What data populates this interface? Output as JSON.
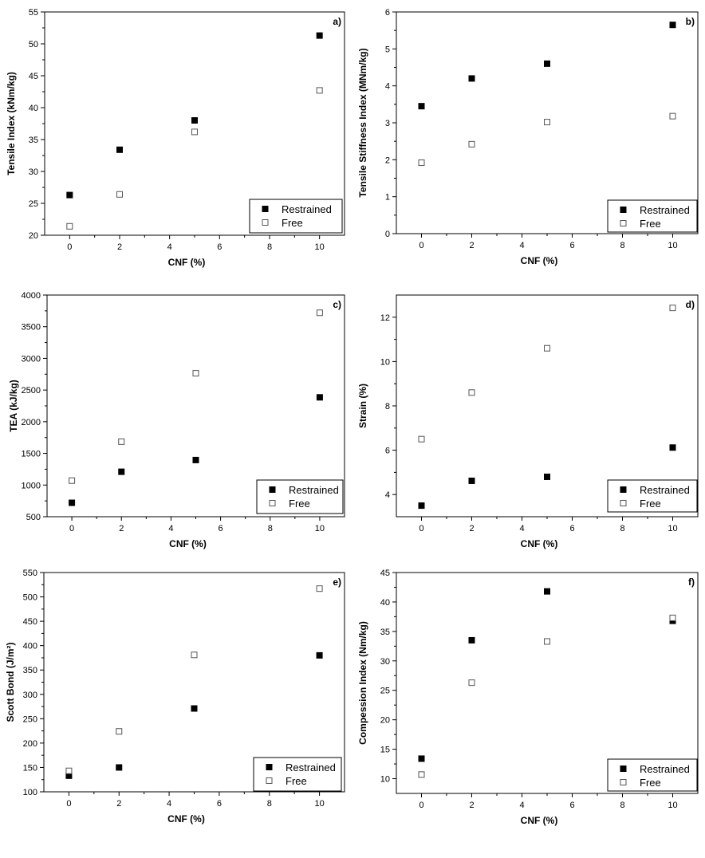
{
  "chart_data": [
    {
      "panel": "a)",
      "type": "scatter",
      "xlabel": "CNF (%)",
      "ylabel": "Tensile Index (kNm/kg)",
      "xlim": [
        -1,
        11
      ],
      "ylim": [
        20,
        55
      ],
      "xticks": [
        0,
        2,
        4,
        6,
        8,
        10
      ],
      "yticks": [
        20,
        25,
        30,
        35,
        40,
        45,
        50,
        55
      ],
      "legend_position": "bottom-right",
      "series": [
        {
          "name": "Restrained",
          "marker": "filled-square",
          "x": [
            0,
            2,
            5,
            10
          ],
          "y": [
            26.3,
            33.4,
            38.0,
            51.3
          ]
        },
        {
          "name": "Free",
          "marker": "open-square",
          "x": [
            0,
            2,
            5,
            10
          ],
          "y": [
            21.4,
            26.4,
            36.2,
            42.7
          ]
        }
      ]
    },
    {
      "panel": "b)",
      "type": "scatter",
      "xlabel": "CNF (%)",
      "ylabel": "Tensile Stiffness Index (MNm/kg)",
      "xlim": [
        -1,
        11
      ],
      "ylim": [
        0,
        6
      ],
      "xticks": [
        0,
        2,
        4,
        6,
        8,
        10
      ],
      "yticks": [
        0,
        1,
        2,
        3,
        4,
        5,
        6
      ],
      "legend_position": "bottom-right",
      "series": [
        {
          "name": "Restrained",
          "marker": "filled-square",
          "x": [
            0,
            2,
            5,
            10
          ],
          "y": [
            3.45,
            4.2,
            4.6,
            5.65
          ]
        },
        {
          "name": "Free",
          "marker": "open-square",
          "x": [
            0,
            2,
            5,
            10
          ],
          "y": [
            1.92,
            2.42,
            3.02,
            3.18
          ]
        }
      ]
    },
    {
      "panel": "c)",
      "type": "scatter",
      "xlabel": "CNF (%)",
      "ylabel": "TEA (kJ/kg)",
      "xlim": [
        -1,
        11
      ],
      "ylim": [
        500,
        4000
      ],
      "xticks": [
        0,
        2,
        4,
        6,
        8,
        10
      ],
      "yticks": [
        500,
        1000,
        1500,
        2000,
        2500,
        3000,
        3500,
        4000
      ],
      "legend_position": "bottom-right",
      "series": [
        {
          "name": "Restrained",
          "marker": "filled-square",
          "x": [
            0,
            2,
            5,
            10
          ],
          "y": [
            720,
            1210,
            1395,
            2385
          ]
        },
        {
          "name": "Free",
          "marker": "open-square",
          "x": [
            0,
            2,
            5,
            10
          ],
          "y": [
            1070,
            1685,
            2765,
            3720
          ]
        }
      ]
    },
    {
      "panel": "d)",
      "type": "scatter",
      "xlabel": "CNF (%)",
      "ylabel": "Strain (%)",
      "xlim": [
        -1,
        11
      ],
      "ylim": [
        3,
        13
      ],
      "xticks": [
        0,
        2,
        4,
        6,
        8,
        10
      ],
      "yticks": [
        4,
        6,
        8,
        10,
        12
      ],
      "legend_position": "bottom-right",
      "series": [
        {
          "name": "Restrained",
          "marker": "filled-square",
          "x": [
            0,
            2,
            5,
            10
          ],
          "y": [
            3.5,
            4.62,
            4.8,
            6.12
          ]
        },
        {
          "name": "Free",
          "marker": "open-square",
          "x": [
            0,
            2,
            5,
            10
          ],
          "y": [
            6.5,
            8.6,
            10.6,
            12.42
          ]
        }
      ]
    },
    {
      "panel": "e)",
      "type": "scatter",
      "xlabel": "CNF (%)",
      "ylabel": "Scott Bond (J/m²)",
      "xlim": [
        -1,
        11
      ],
      "ylim": [
        100,
        550
      ],
      "xticks": [
        0,
        2,
        4,
        6,
        8,
        10
      ],
      "yticks": [
        100,
        150,
        200,
        250,
        300,
        350,
        400,
        450,
        500,
        550
      ],
      "legend_position": "bottom-right",
      "series": [
        {
          "name": "Restrained",
          "marker": "filled-square",
          "x": [
            0,
            2,
            5,
            10
          ],
          "y": [
            133,
            150,
            271,
            380
          ]
        },
        {
          "name": "Free",
          "marker": "open-square",
          "x": [
            0,
            2,
            5,
            10
          ],
          "y": [
            143,
            224,
            381,
            517
          ]
        }
      ]
    },
    {
      "panel": "f)",
      "type": "scatter",
      "xlabel": "CNF (%)",
      "ylabel": "Compession Index (Nm/kg)",
      "xlim": [
        -1,
        11
      ],
      "ylim": [
        7.5,
        45
      ],
      "xticks": [
        0,
        2,
        4,
        6,
        8,
        10
      ],
      "yticks": [
        10,
        15,
        20,
        25,
        30,
        35,
        40,
        45
      ],
      "legend_position": "bottom-right",
      "series": [
        {
          "name": "Restrained",
          "marker": "filled-square",
          "x": [
            0,
            2,
            5,
            10
          ],
          "y": [
            13.4,
            33.5,
            41.8,
            36.8
          ]
        },
        {
          "name": "Free",
          "marker": "open-square",
          "x": [
            0,
            2,
            5,
            10
          ],
          "y": [
            10.7,
            26.3,
            33.3,
            37.3
          ]
        }
      ]
    }
  ]
}
